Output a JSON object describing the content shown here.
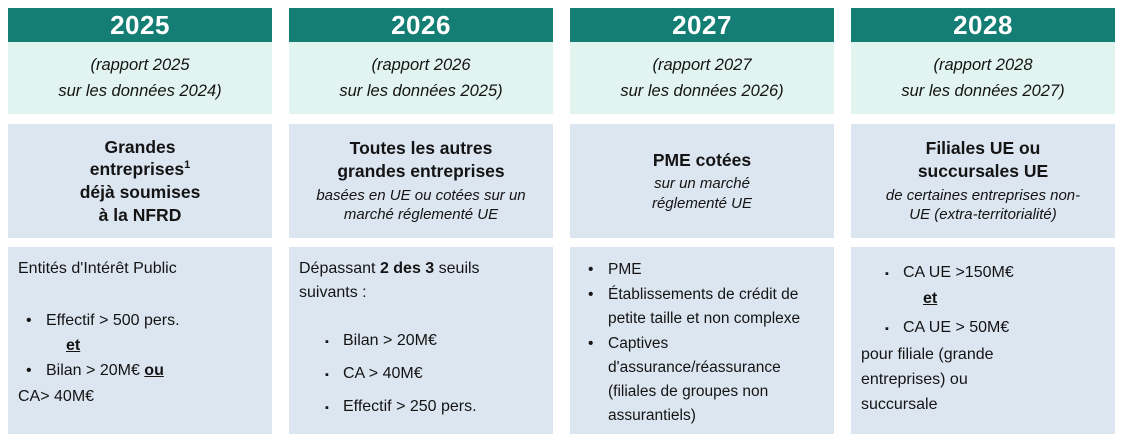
{
  "glyphs": {
    "round_bullet": "•",
    "square_bullet": "▪"
  },
  "colors": {
    "header_bg": "#157e74",
    "header_text": "#ffffff",
    "rapport_bg": "#e2f4f0",
    "panel_bg": "#dce6f1",
    "text": "#141414"
  },
  "columns": [
    {
      "year": "2025",
      "rapport_lines": [
        "(rapport 2025",
        "sur les données 2024)"
      ],
      "scope": {
        "title_main": "Grandes entreprises",
        "footnote": "1",
        "title_rest": "déjà soumises à la NFRD"
      },
      "criteria": {
        "intro": "Entités d'Intérêt Public",
        "item1_text": "Effectif > 500 pers.",
        "item1_conjunction": "et",
        "item2_text": "Bilan > 20M€",
        "item2_conjunction": "ou",
        "item2_continuation": "CA> 40M€"
      }
    },
    {
      "year": "2026",
      "rapport_lines": [
        "(rapport 2026",
        "sur les données 2025)"
      ],
      "scope": {
        "title": "Toutes les autres grandes entreprises",
        "subtitle": "basées en UE ou cotées sur un marché réglementé UE"
      },
      "criteria": {
        "intro_pre": "Dépassant ",
        "intro_bold": "2 des 3",
        "intro_post": " seuils suivants :",
        "items": [
          "Bilan > 20M€",
          "CA > 40M€",
          "Effectif > 250 pers."
        ]
      }
    },
    {
      "year": "2027",
      "rapport_lines": [
        "(rapport 2027",
        "sur les données 2026)"
      ],
      "scope": {
        "title": "PME cotées",
        "subtitle": "sur un marché réglementé UE"
      },
      "criteria": {
        "items": [
          "PME",
          "Établissements de crédit de petite taille et non complexe",
          "Captives d'assurance/réassurance (filiales de groupes non assurantiels)"
        ]
      }
    },
    {
      "year": "2028",
      "rapport_lines": [
        "(rapport 2028",
        "sur les données 2027)"
      ],
      "scope": {
        "title": "Filiales UE ou succursales UE",
        "subtitle": "de certaines entreprises non-UE (extra-territorialité)"
      },
      "criteria": {
        "item1_text": "CA UE >150M€",
        "item1_conjunction": "et",
        "item2_text": "CA UE > 50M€",
        "footer": "pour filiale (grande entreprises) ou succursale"
      }
    }
  ]
}
